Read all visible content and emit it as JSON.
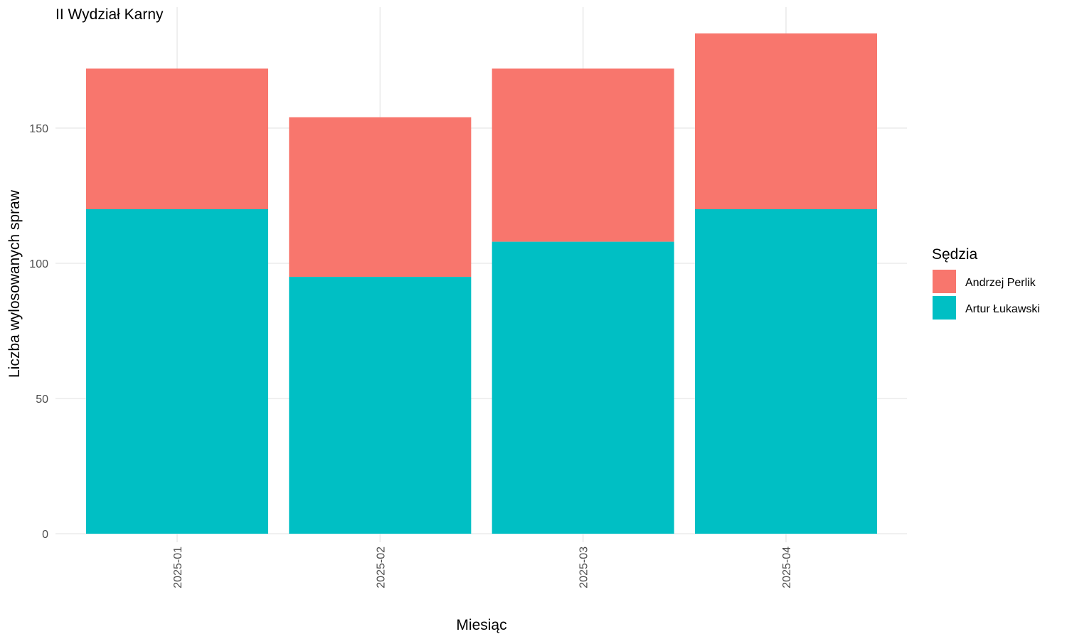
{
  "chart_data": {
    "type": "bar",
    "stacked": true,
    "title": "II Wydział Karny",
    "xlabel": "Miesiąc",
    "ylabel": "Liczba wylosowanych spraw",
    "categories": [
      "2025-01",
      "2025-02",
      "2025-03",
      "2025-04"
    ],
    "series": [
      {
        "name": "Artur Łukawski",
        "values": [
          120,
          95,
          108,
          120
        ],
        "color": "#00BFC4"
      },
      {
        "name": "Andrzej Perlik",
        "values": [
          52,
          59,
          64,
          65
        ],
        "color": "#F8766D"
      }
    ],
    "stack_order_top_to_bottom": [
      "Andrzej Perlik",
      "Artur Łukawski"
    ],
    "yticks": [
      0,
      50,
      100,
      150
    ],
    "ylim": [
      0,
      185
    ],
    "grid": true,
    "legend": {
      "title": "Sędzia",
      "position": "right",
      "entries": [
        "Andrzej Perlik",
        "Artur Łukawski"
      ]
    }
  }
}
